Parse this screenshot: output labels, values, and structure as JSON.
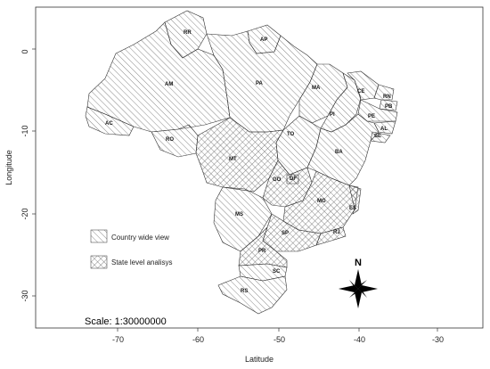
{
  "map": {
    "x_axis_title": "Latitude",
    "y_axis_title": "Longitude",
    "x_ticks": [
      "-70",
      "-60",
      "-50",
      "-40",
      "-30"
    ],
    "y_ticks": [
      "0",
      "-10",
      "-20",
      "-30"
    ],
    "scale_text": "Scale: 1:30000000",
    "north_label": "N",
    "legend": {
      "country_wide": "Country wide view",
      "state_level": "State level analisys"
    },
    "state_labels": {
      "RR": "RR",
      "AP": "AP",
      "AM": "AM",
      "PA": "PA",
      "MA": "MA",
      "CE": "CE",
      "RN": "RN",
      "PB": "PB",
      "PE": "PE",
      "AL": "AL",
      "SE": "SE",
      "PI": "PI",
      "AC": "AC",
      "RO": "RO",
      "TO": "TO",
      "BA": "BA",
      "MT": "MT",
      "GO": "GO",
      "DF": "DF",
      "MG": "MG",
      "ES": "ES",
      "MS": "MS",
      "SP": "SP",
      "RJ": "RJ",
      "PR": "PR",
      "SC": "SC",
      "RS": "RS"
    },
    "colors": {
      "hatch": "#555555",
      "border": "#333333",
      "axis": "#333333"
    }
  }
}
